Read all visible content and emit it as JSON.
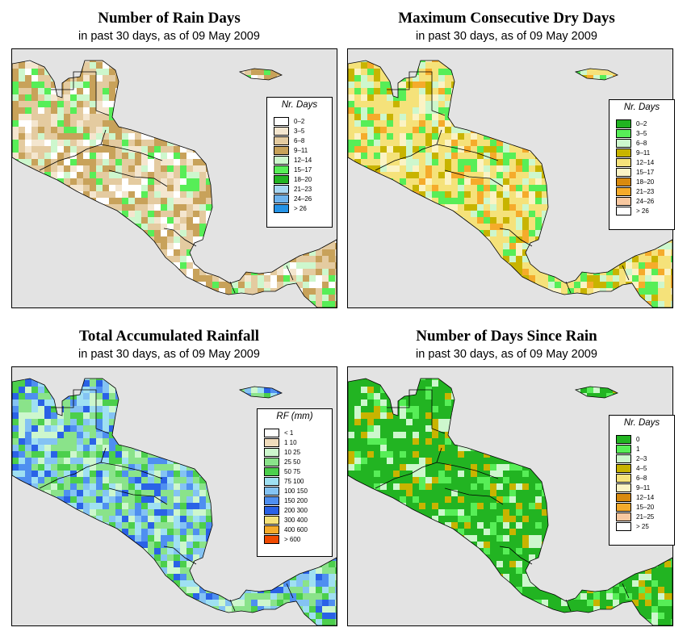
{
  "panels": [
    {
      "id": "rain-days",
      "title": "Number of Rain Days",
      "subtitle": "in past 30 days, as of  09 May 2009",
      "legend_title": "Nr. Days",
      "legend": [
        {
          "label": "0–2",
          "color": "#ffffff"
        },
        {
          "label": "3–5",
          "color": "#f4e6cf"
        },
        {
          "label": "6–8",
          "color": "#e4cba0"
        },
        {
          "label": "9–11",
          "color": "#c8a25a"
        },
        {
          "label": "12–14",
          "color": "#cdf7cd"
        },
        {
          "label": "15–17",
          "color": "#57ee57"
        },
        {
          "label": "18–20",
          "color": "#22b422"
        },
        {
          "label": "21–23",
          "color": "#a9d8f5"
        },
        {
          "label": "24–26",
          "color": "#6fb4ee"
        },
        {
          "label": "> 26",
          "color": "#2593e6"
        }
      ],
      "land_palette": [
        "#e4cba0",
        "#f4e6cf",
        "#c8a25a",
        "#cdf7cd",
        "#57ee57",
        "#e4cba0",
        "#c8a25a",
        "#ffffff"
      ]
    },
    {
      "id": "max-dry",
      "title": "Maximum Consecutive Dry Days",
      "subtitle": "in past 30 days, as of  09 May 2009",
      "legend_title": "Nr. Days",
      "legend": [
        {
          "label": "0–2",
          "color": "#22b422"
        },
        {
          "label": "3–5",
          "color": "#57ee57"
        },
        {
          "label": "6–8",
          "color": "#cdf7cd"
        },
        {
          "label": "9–11",
          "color": "#c8b400"
        },
        {
          "label": "12–14",
          "color": "#f5e27a"
        },
        {
          "label": "15–17",
          "color": "#fbf3c4"
        },
        {
          "label": "18–20",
          "color": "#d88a0e"
        },
        {
          "label": "21–23",
          "color": "#f5ab2b"
        },
        {
          "label": "24–26",
          "color": "#f8c8a0"
        },
        {
          "label": "> 26",
          "color": "#ffffff"
        }
      ],
      "land_palette": [
        "#f5e27a",
        "#f5e27a",
        "#57ee57",
        "#cdf7cd",
        "#c8b400",
        "#fbf3c4",
        "#f5e27a",
        "#f5ab2b"
      ]
    },
    {
      "id": "total-rain",
      "title": "Total Accumulated Rainfall",
      "subtitle": "in past 30 days, as of  09 May 2009",
      "legend_title": "RF (mm)",
      "legend": [
        {
          "label": "< 1",
          "color": "#ffffff"
        },
        {
          "label": "1  10",
          "color": "#f0dcbc"
        },
        {
          "label": "10  25",
          "color": "#cdf7cd"
        },
        {
          "label": "25  50",
          "color": "#8ae38a"
        },
        {
          "label": "50  75",
          "color": "#4ccf4c"
        },
        {
          "label": "75  100",
          "color": "#9fe0f2"
        },
        {
          "label": "100  150",
          "color": "#84c3f3"
        },
        {
          "label": "150  200",
          "color": "#4f8ff0"
        },
        {
          "label": "200  300",
          "color": "#2a62e6"
        },
        {
          "label": "300  400",
          "color": "#f5e27a"
        },
        {
          "label": "400  600",
          "color": "#f5ab2b"
        },
        {
          "label": "> 600",
          "color": "#f04a00"
        }
      ],
      "land_palette": [
        "#8ae38a",
        "#4ccf4c",
        "#84c3f3",
        "#9fe0f2",
        "#8ae38a",
        "#4f8ff0",
        "#cdf7cd",
        "#2a62e6"
      ]
    },
    {
      "id": "days-since",
      "title": "Number of Days Since Rain",
      "subtitle": "in past 30 days, as of  09 May 2009",
      "legend_title": "Nr. Days",
      "legend": [
        {
          "label": "0",
          "color": "#22b422"
        },
        {
          "label": "1",
          "color": "#57ee57"
        },
        {
          "label": "2–3",
          "color": "#cdf7cd"
        },
        {
          "label": "4–5",
          "color": "#c8b400"
        },
        {
          "label": "6–8",
          "color": "#f5e27a"
        },
        {
          "label": "9–11",
          "color": "#fbf3c4"
        },
        {
          "label": "12–14",
          "color": "#d88a0e"
        },
        {
          "label": "15–20",
          "color": "#f5ab2b"
        },
        {
          "label": "21–25",
          "color": "#f8c8a0"
        },
        {
          "label": "> 25",
          "color": "#ffffff"
        }
      ],
      "land_palette": [
        "#22b422",
        "#22b422",
        "#22b422",
        "#22b422",
        "#57ee57",
        "#cdf7cd",
        "#22b422",
        "#c8b400"
      ]
    }
  ]
}
